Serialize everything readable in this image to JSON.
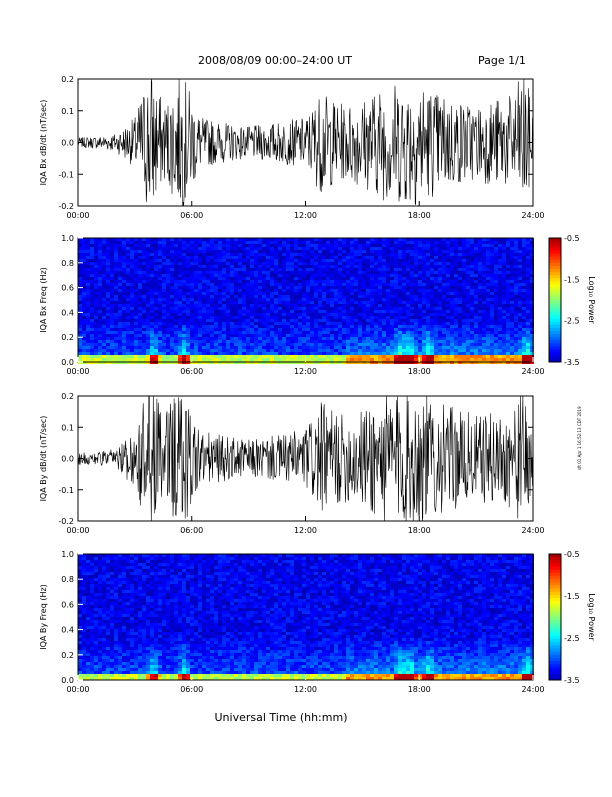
{
  "header": {
    "title": "2008/08/09  00:00–24:00 UT",
    "page": "Page 1/1"
  },
  "footer": {
    "xlabel": "Universal Time (hh:mm)",
    "side_note": "sft 01 Apr 1 16:52:13 CDT 2019"
  },
  "chart_data": [
    {
      "type": "line",
      "ylabel": "IQA Bx dB/dt (nT/sec)",
      "ylim": [
        -0.2,
        0.2
      ],
      "yticks": [
        "0.2",
        "0.1",
        "0.0",
        "-0.1",
        "-0.2"
      ],
      "xticks": [
        "00:00",
        "06:00",
        "12:00",
        "18:00",
        "24:00"
      ],
      "x_range_hours": [
        0,
        24
      ],
      "envelope": {
        "hours": [
          0,
          1,
          2,
          3,
          3.8,
          4.5,
          5.5,
          6.5,
          8,
          9,
          10,
          11,
          12,
          12.8,
          14,
          15,
          16,
          17,
          18,
          19,
          20,
          21,
          22,
          23,
          23.5,
          24
        ],
        "amplitude": [
          0.015,
          0.02,
          0.03,
          0.08,
          0.25,
          0.12,
          0.22,
          0.08,
          0.06,
          0.05,
          0.06,
          0.07,
          0.08,
          0.16,
          0.12,
          0.14,
          0.18,
          0.2,
          0.2,
          0.16,
          0.14,
          0.12,
          0.14,
          0.15,
          0.25,
          0.1
        ]
      }
    },
    {
      "type": "heatmap",
      "ylabel": "IQA Bx Freq (Hz)",
      "ylim": [
        0.0,
        1.0
      ],
      "yticks": [
        "1.0",
        "0.8",
        "0.6",
        "0.4",
        "0.2",
        "0.0"
      ],
      "xticks": [
        "00:00",
        "06:00",
        "12:00",
        "18:00",
        "24:00"
      ],
      "colorbar": {
        "label": "Log₁₀ Power",
        "ticks": [
          "-0.5",
          "-1.5",
          "-2.5",
          "-3.5"
        ],
        "range": [
          -3.5,
          -0.5
        ]
      },
      "bursts_hours": [
        3.9,
        5.5,
        16.9,
        17.4,
        18.4,
        23.6
      ]
    },
    {
      "type": "line",
      "ylabel": "IQA By dB/dt (nT/sec)",
      "ylim": [
        -0.2,
        0.2
      ],
      "yticks": [
        "0.2",
        "0.1",
        "0.0",
        "-0.1",
        "-0.2"
      ],
      "xticks": [
        "00:00",
        "06:00",
        "12:00",
        "18:00",
        "24:00"
      ],
      "x_range_hours": [
        0,
        24
      ],
      "envelope": {
        "hours": [
          0,
          1,
          2,
          3,
          3.8,
          4.5,
          5.5,
          6.5,
          8,
          9,
          10,
          11,
          12,
          12.8,
          14,
          15,
          16,
          17,
          18,
          19,
          20,
          21,
          22,
          23,
          23.5,
          24
        ],
        "amplitude": [
          0.02,
          0.025,
          0.03,
          0.1,
          0.25,
          0.14,
          0.24,
          0.09,
          0.07,
          0.06,
          0.07,
          0.08,
          0.1,
          0.18,
          0.14,
          0.16,
          0.22,
          0.22,
          0.22,
          0.18,
          0.16,
          0.14,
          0.15,
          0.16,
          0.25,
          0.12
        ]
      }
    },
    {
      "type": "heatmap",
      "ylabel": "IQA By Freq (Hz)",
      "ylim": [
        0.0,
        1.0
      ],
      "yticks": [
        "1.0",
        "0.8",
        "0.6",
        "0.4",
        "0.2",
        "0.0"
      ],
      "xticks": [
        "00:00",
        "06:00",
        "12:00",
        "18:00",
        "24:00"
      ],
      "colorbar": {
        "label": "Log₁₀ Power",
        "ticks": [
          "-0.5",
          "-1.5",
          "-2.5",
          "-3.5"
        ],
        "range": [
          -3.5,
          -0.5
        ]
      },
      "bursts_hours": [
        3.9,
        5.5,
        16.9,
        17.4,
        18.4,
        23.6
      ]
    }
  ]
}
